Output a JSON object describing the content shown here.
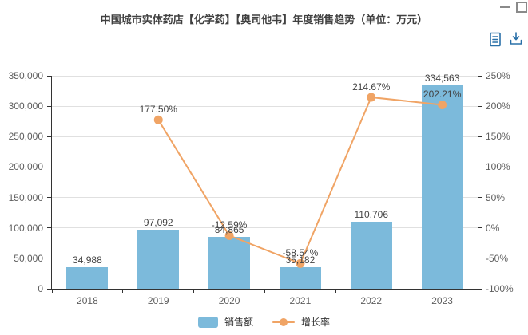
{
  "title": "中国城市实体药店【化学药】【奥司他韦】年度销售趋势（单位：万元）",
  "icons": {
    "minimize": "minimize-icon",
    "maximize": "maximize-icon",
    "data_view": "data-view-icon",
    "download": "download-icon"
  },
  "colors": {
    "bar": "#7CBADB",
    "line": "#F0A465",
    "title_text": "#404040",
    "axis_label": "#5E5E5E",
    "grid_line": "#E0E0E0",
    "axis_line": "#333333",
    "data_label": "#444444",
    "toolbox_icon": "#2970A8",
    "window_control": "#8A8A8A"
  },
  "chart_data": {
    "type": "bar",
    "title": "中国城市实体药店【化学药】【奥司他韦】年度销售趋势（单位：万元）",
    "categories": [
      "2018",
      "2019",
      "2020",
      "2021",
      "2022",
      "2023"
    ],
    "series": [
      {
        "name": "销售额",
        "type": "bar",
        "axis": "left",
        "color": "#7CBADB",
        "values": [
          34988,
          97092,
          84865,
          35182,
          110706,
          334563
        ],
        "labels": [
          "34,988",
          "97,092",
          "84,865",
          "35,182",
          "110,706",
          "334,563"
        ]
      },
      {
        "name": "增长率",
        "type": "line",
        "axis": "right",
        "color": "#F0A465",
        "values": [
          null,
          177.5,
          -12.59,
          -58.54,
          214.67,
          202.21
        ],
        "labels": [
          "",
          "177.50%",
          "-12.59%",
          "-58.54%",
          "214.67%",
          "202.21%"
        ]
      }
    ],
    "left_axis": {
      "min": 0,
      "max": 350000,
      "step": 50000,
      "tick_labels": [
        "0",
        "50,000",
        "100,000",
        "150,000",
        "200,000",
        "250,000",
        "300,000",
        "350,000"
      ]
    },
    "right_axis": {
      "min": -100,
      "max": 250,
      "step": 50,
      "tick_labels": [
        "-100%",
        "-50%",
        "0%",
        "50%",
        "100%",
        "150%",
        "200%",
        "250%"
      ]
    },
    "grid": true,
    "legend_position": "bottom"
  }
}
